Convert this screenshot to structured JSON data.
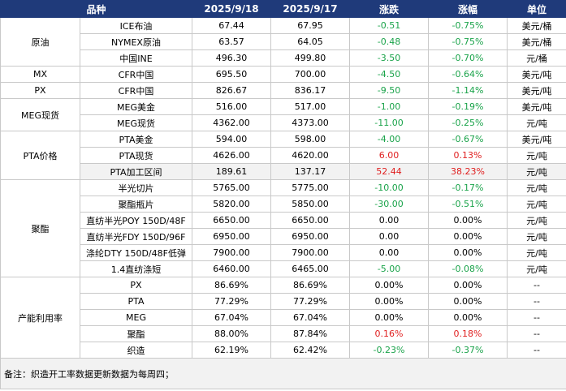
{
  "headers": [
    "品种",
    "2025/9/18",
    "2025/9/17",
    "涨跌",
    "涨幅",
    "单位"
  ],
  "groups": [
    {
      "name": "原油",
      "rows": [
        {
          "item": "ICE布油",
          "d1": "67.44",
          "d2": "67.95",
          "chg": "-0.51",
          "pct": "-0.75%",
          "unit": "美元/桶",
          "dir": "neg"
        },
        {
          "item": "NYMEX原油",
          "d1": "63.57",
          "d2": "64.05",
          "chg": "-0.48",
          "pct": "-0.75%",
          "unit": "美元/桶",
          "dir": "neg"
        },
        {
          "item": "中国INE",
          "d1": "496.30",
          "d2": "499.80",
          "chg": "-3.50",
          "pct": "-0.70%",
          "unit": "元/桶",
          "dir": "neg"
        }
      ]
    },
    {
      "name": "MX",
      "rows": [
        {
          "item": "CFR中国",
          "d1": "695.50",
          "d2": "700.00",
          "chg": "-4.50",
          "pct": "-0.64%",
          "unit": "美元/吨",
          "dir": "neg"
        }
      ]
    },
    {
      "name": "PX",
      "rows": [
        {
          "item": "CFR中国",
          "d1": "826.67",
          "d2": "836.17",
          "chg": "-9.50",
          "pct": "-1.14%",
          "unit": "美元/吨",
          "dir": "neg"
        }
      ]
    },
    {
      "name": "MEG现货",
      "rows": [
        {
          "item": "MEG美金",
          "d1": "516.00",
          "d2": "517.00",
          "chg": "-1.00",
          "pct": "-0.19%",
          "unit": "美元/吨",
          "dir": "neg"
        },
        {
          "item": "MEG现货",
          "d1": "4362.00",
          "d2": "4373.00",
          "chg": "-11.00",
          "pct": "-0.25%",
          "unit": "元/吨",
          "dir": "neg"
        }
      ]
    },
    {
      "name": "PTA价格",
      "rows": [
        {
          "item": "PTA美金",
          "d1": "594.00",
          "d2": "598.00",
          "chg": "-4.00",
          "pct": "-0.67%",
          "unit": "美元/吨",
          "dir": "neg"
        },
        {
          "item": "PTA现货",
          "d1": "4626.00",
          "d2": "4620.00",
          "chg": "6.00",
          "pct": "0.13%",
          "unit": "元/吨",
          "dir": "pos"
        },
        {
          "item": "PTA加工区间",
          "d1": "189.61",
          "d2": "137.17",
          "chg": "52.44",
          "pct": "38.23%",
          "unit": "元/吨",
          "dir": "pos"
        }
      ]
    },
    {
      "name": "聚酯",
      "rows": [
        {
          "item": "半光切片",
          "d1": "5765.00",
          "d2": "5775.00",
          "chg": "-10.00",
          "pct": "-0.17%",
          "unit": "元/吨",
          "dir": "neg"
        },
        {
          "item": "聚酯瓶片",
          "d1": "5820.00",
          "d2": "5850.00",
          "chg": "-30.00",
          "pct": "-0.51%",
          "unit": "元/吨",
          "dir": "neg"
        },
        {
          "item": "直纺半光POY 150D/48F",
          "d1": "6650.00",
          "d2": "6650.00",
          "chg": "0.00",
          "pct": "0.00%",
          "unit": "元/吨",
          "dir": "zero"
        },
        {
          "item": "直纺半光FDY 150D/96F",
          "d1": "6950.00",
          "d2": "6950.00",
          "chg": "0.00",
          "pct": "0.00%",
          "unit": "元/吨",
          "dir": "zero"
        },
        {
          "item": "涤纶DTY 150D/48F低弹",
          "d1": "7900.00",
          "d2": "7900.00",
          "chg": "0.00",
          "pct": "0.00%",
          "unit": "元/吨",
          "dir": "zero"
        },
        {
          "item": "1.4直纺涤短",
          "d1": "6460.00",
          "d2": "6465.00",
          "chg": "-5.00",
          "pct": "-0.08%",
          "unit": "元/吨",
          "dir": "neg"
        }
      ]
    },
    {
      "name": "产能利用率",
      "rows": [
        {
          "item": "PX",
          "d1": "86.69%",
          "d2": "86.69%",
          "chg": "0.00%",
          "pct": "0.00%",
          "unit": "--",
          "dir": "zero"
        },
        {
          "item": "PTA",
          "d1": "77.29%",
          "d2": "77.29%",
          "chg": "0.00%",
          "pct": "0.00%",
          "unit": "--",
          "dir": "zero"
        },
        {
          "item": "MEG",
          "d1": "67.04%",
          "d2": "67.04%",
          "chg": "0.00%",
          "pct": "0.00%",
          "unit": "--",
          "dir": "zero"
        },
        {
          "item": "聚酯",
          "d1": "88.00%",
          "d2": "87.84%",
          "chg": "0.16%",
          "pct": "0.18%",
          "unit": "--",
          "dir": "pos"
        },
        {
          "item": "织造",
          "d1": "62.19%",
          "d2": "62.42%",
          "chg": "-0.23%",
          "pct": "-0.37%",
          "unit": "--",
          "dir": "neg"
        }
      ]
    }
  ],
  "note": "备注：织造开工率数据更新数据为每周四；",
  "colors": {
    "header_bg": "#1f3a7a",
    "negative": "#1aa34a",
    "positive": "#e02020"
  }
}
